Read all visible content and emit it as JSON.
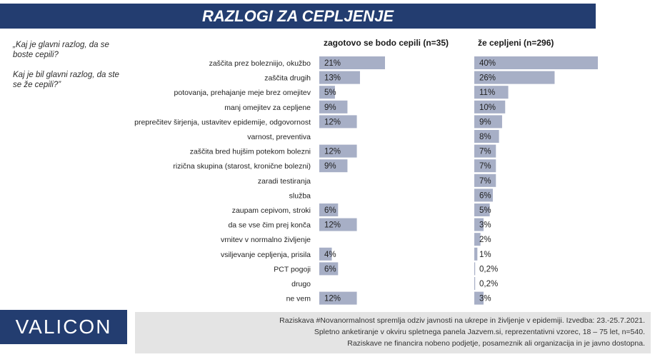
{
  "title": "RAZLOGI ZA CEPLJENJE",
  "questions": {
    "q1": "„Kaj je glavni razlog, da se boste cepili?",
    "q2": "Kaj je bil glavni razlog, da ste se že cepili?”"
  },
  "brand": "VALICON",
  "footnote": [
    "Raziskava #Novanormalnost spremlja odziv javnosti na ukrepe in življenje v epidemiji. Izvedba: 23.-25.7.2021.",
    "Spletno anketiranje v okviru spletnega panela Jazvem.si, reprezentativni vzorec, 18 – 75 let, n=540.",
    "Raziskave ne financira nobeno podjetje, posameznik ali organizacija in je javno dostopna."
  ],
  "colors": {
    "bar": "#a7afc6",
    "title_bg": "#233d70"
  },
  "chart_data": {
    "type": "bar",
    "orientation": "horizontal",
    "categories": [
      "zaščita prez bolezniijo, okužbo",
      "zaščita drugih",
      "potovanja, prehajanje meje brez omejitev",
      "manj omejitev za cepljene",
      "preprečitev širjenja, ustavitev epidemije, odgovornost",
      "varnost, preventiva",
      "zaščita bred hujšim potekom bolezni",
      "rizična skupina (starost, kronične bolezni)",
      "zaradi testiranja",
      "služba",
      "zaupam cepivom, stroki",
      "da se vse čim prej konča",
      "vrnitev v normalno življenje",
      "vsiljevanje cepljenja, prisila",
      "PCT pogoji",
      "drugo",
      "ne vem"
    ],
    "series": [
      {
        "name": "zagotovo se bodo cepili (n=35)",
        "values": [
          21,
          13,
          5,
          9,
          12,
          null,
          12,
          9,
          null,
          null,
          6,
          12,
          null,
          4,
          6,
          null,
          12
        ],
        "labels": [
          "21%",
          "13%",
          "5%",
          "9%",
          "12%",
          "",
          "12%",
          "9%",
          "",
          "",
          "6%",
          "12%",
          "",
          "4%",
          "6%",
          "",
          "12%"
        ]
      },
      {
        "name": "že cepljeni (n=296)",
        "values": [
          40,
          26,
          11,
          10,
          9,
          8,
          7,
          7,
          7,
          6,
          5,
          3,
          2,
          1,
          0.2,
          0.2,
          3
        ],
        "labels": [
          "40%",
          "26%",
          "11%",
          "10%",
          "9%",
          "8%",
          "7%",
          "7%",
          "7%",
          "6%",
          "5%",
          "3%",
          "2%",
          "1%",
          "0,2%",
          "0,2%",
          "3%"
        ]
      }
    ],
    "xlim": [
      0,
      40
    ]
  }
}
